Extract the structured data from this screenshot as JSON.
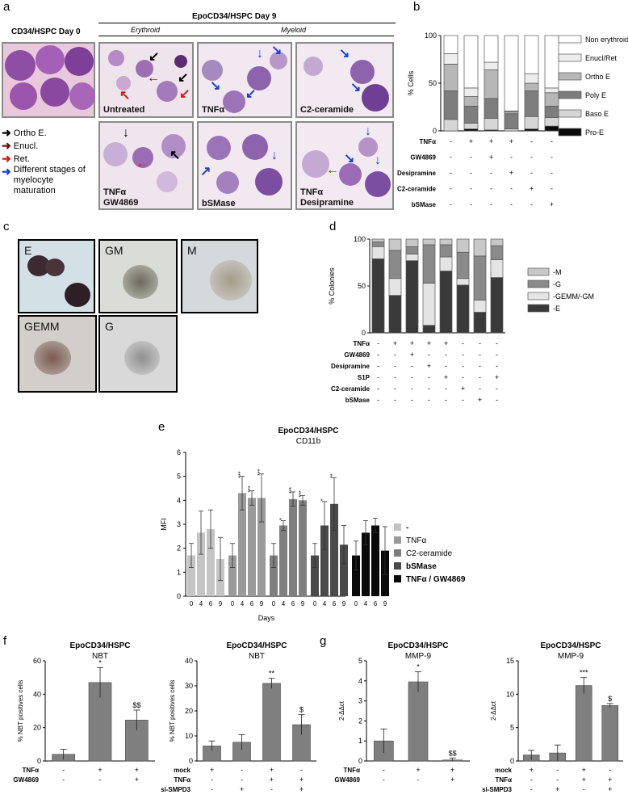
{
  "panels": {
    "a": "a",
    "b": "b",
    "c": "c",
    "d": "d",
    "e": "e",
    "f": "f",
    "g": "g"
  },
  "panel_a": {
    "day0_title": "CD34/HSPC Day 0",
    "day9_title": "EpoCD34/HSPC Day 9",
    "erythroid": "Erythroid",
    "myeloid": "Myeloid",
    "labels": {
      "untreated": "Untreated",
      "tnfa": "TNFα",
      "c2": "C2-ceramide",
      "tnfa_gw1": "TNFα",
      "tnfa_gw2": "GW4869",
      "bsmase": "bSMase",
      "tnfa_des1": "TNFα",
      "tnfa_des2": "Desipramine"
    },
    "legend": [
      "Ortho E.",
      "Enucl.",
      "Ret.",
      "Different stages of myelocyte maturation"
    ],
    "legend_colors": [
      "#000000",
      "#6b0f0f",
      "#d11a1a",
      "#1a3fd1"
    ]
  },
  "panel_c": {
    "labels": [
      "E",
      "GM",
      "M",
      "GEMM",
      "G"
    ]
  },
  "chart_data": [
    {
      "id": "b",
      "type": "bar",
      "stacked": true,
      "ylabel": "% Cells",
      "ylim": [
        0,
        100
      ],
      "yticks": [
        "0",
        "50",
        "100"
      ],
      "series": [
        {
          "name": "Pro-E",
          "values": [
            0,
            2,
            1,
            0,
            2,
            5
          ]
        },
        {
          "name": "Baso E",
          "values": [
            12,
            6,
            12,
            2,
            13,
            9
          ]
        },
        {
          "name": "Poly E",
          "values": [
            30,
            18,
            21,
            16,
            27,
            12
          ]
        },
        {
          "name": "Ortho E",
          "values": [
            28,
            10,
            30,
            2,
            8,
            14
          ]
        },
        {
          "name": "Enucl/Ret",
          "values": [
            11,
            9,
            8,
            1,
            10,
            5
          ]
        },
        {
          "name": "Non erythroid",
          "values": [
            19,
            55,
            28,
            79,
            40,
            55
          ]
        }
      ],
      "legend": [
        "Non erythroid",
        "Enucl/Ret",
        "Ortho E",
        "Poly E",
        "Baso E",
        "Pro-E"
      ],
      "colors": {
        "Non erythroid": "#ffffff",
        "Enucl/Ret": "#ededed",
        "Ortho E": "#b7b7b7",
        "Poly E": "#7d7d7d",
        "Baso E": "#d6d6d6",
        "Pro-E": "#0a0a0a"
      },
      "treatment_rows": [
        {
          "label": "TNFα",
          "signs": [
            "-",
            "+",
            "+",
            "+",
            "-",
            "-"
          ]
        },
        {
          "label": "GW4869",
          "signs": [
            "-",
            "-",
            "+",
            "-",
            "-",
            "-"
          ]
        },
        {
          "label": "Desipramine",
          "signs": [
            "-",
            "-",
            "-",
            "+",
            "-",
            "-"
          ]
        },
        {
          "label": "C2-ceramide",
          "signs": [
            "-",
            "-",
            "-",
            "-",
            "+",
            "-"
          ]
        },
        {
          "label": "bSMase",
          "signs": [
            "-",
            "-",
            "-",
            "-",
            "-",
            "+"
          ]
        }
      ]
    },
    {
      "id": "d",
      "type": "bar",
      "stacked": true,
      "ylabel": "% Colonies",
      "ylim": [
        0,
        100
      ],
      "yticks": [
        "0",
        "50",
        "100"
      ],
      "series": [
        {
          "name": "-E",
          "values": [
            79,
            40,
            77,
            8,
            66,
            51,
            22,
            59
          ]
        },
        {
          "name": "-GEMM/-GM",
          "values": [
            13,
            18,
            7,
            45,
            15,
            7,
            13,
            19
          ]
        },
        {
          "name": "-G",
          "values": [
            5,
            30,
            8,
            41,
            13,
            28,
            47,
            15
          ]
        },
        {
          "name": "-M",
          "values": [
            3,
            12,
            8,
            6,
            6,
            14,
            18,
            7
          ]
        }
      ],
      "legend": [
        "-M",
        "-G",
        "-GEMM/-GM",
        "-E"
      ],
      "colors": {
        "-M": "#c8c8c8",
        "-G": "#8a8a8a",
        "-GEMM/-GM": "#e4e4e4",
        "-E": "#3a3a3a"
      },
      "treatment_rows": [
        {
          "label": "TNFα",
          "signs": [
            "-",
            "+",
            "+",
            "+",
            "+",
            "-",
            "-",
            "-"
          ]
        },
        {
          "label": "GW4869",
          "signs": [
            "-",
            "-",
            "+",
            "-",
            "-",
            "-",
            "-",
            "-"
          ]
        },
        {
          "label": "Desipramine",
          "signs": [
            "-",
            "-",
            "-",
            "+",
            "-",
            "-",
            "-",
            "-"
          ]
        },
        {
          "label": "S1P",
          "signs": [
            "-",
            "-",
            "-",
            "-",
            "+",
            "-",
            "-",
            "+"
          ]
        },
        {
          "label": "C2-ceramide",
          "signs": [
            "-",
            "-",
            "-",
            "-",
            "-",
            "+",
            "-",
            "-"
          ]
        },
        {
          "label": "bSMase",
          "signs": [
            "-",
            "-",
            "-",
            "-",
            "-",
            "-",
            "+",
            "-"
          ]
        }
      ]
    },
    {
      "id": "e",
      "type": "bar",
      "title": "EpoCD34/HSPC",
      "subtitle": "CD11b",
      "ylabel": "MFI",
      "xlabel": "Days",
      "ylim": [
        0,
        6
      ],
      "yticks": [
        "0",
        "1",
        "2",
        "3",
        "4",
        "5",
        "6"
      ],
      "groups": [
        {
          "name": "-",
          "color": "#c4c4c4",
          "days": [
            "0",
            "4",
            "6",
            "9"
          ],
          "values": [
            1.7,
            2.65,
            2.8,
            1.55
          ],
          "err": [
            0.5,
            0.9,
            0.8,
            0.9
          ],
          "stars": [
            "",
            "",
            "",
            ""
          ]
        },
        {
          "name": "TNFα",
          "color": "#9a9a9a",
          "days": [
            "0",
            "4",
            "6",
            "9"
          ],
          "values": [
            1.7,
            4.3,
            4.1,
            4.1
          ],
          "err": [
            0.5,
            0.7,
            0.3,
            1.0
          ],
          "stars": [
            "",
            "***",
            "***",
            "***"
          ]
        },
        {
          "name": "C2-ceramide",
          "color": "#7f7f7f",
          "days": [
            "0",
            "4",
            "6",
            "9"
          ],
          "values": [
            1.7,
            2.95,
            4.05,
            4.0
          ],
          "err": [
            0.5,
            0.2,
            0.3,
            0.2
          ],
          "stars": [
            "",
            "*",
            "***",
            "***"
          ]
        },
        {
          "name": "bSMase",
          "color": "#4a4a4a",
          "days": [
            "0",
            "4",
            "6",
            "9"
          ],
          "values": [
            1.7,
            2.95,
            3.85,
            2.15
          ],
          "err": [
            0.5,
            1.0,
            1.1,
            0.8
          ],
          "stars": [
            "",
            "*",
            "**",
            ""
          ]
        },
        {
          "name": "TNFα / GW4869",
          "color": "#0a0a0a",
          "days": [
            "0",
            "4",
            "6",
            "9"
          ],
          "values": [
            1.7,
            2.65,
            2.95,
            1.9
          ],
          "err": [
            0.6,
            0.5,
            0.3,
            1.0
          ],
          "stars": [
            "",
            "",
            "",
            ""
          ]
        }
      ]
    },
    {
      "id": "f1",
      "type": "bar",
      "title": "EpoCD34/HSPC",
      "subtitle": "NBT",
      "ylabel": "% NBT positives cells",
      "ylim": [
        0,
        60
      ],
      "yticks": [
        "0",
        "20",
        "40",
        "60"
      ],
      "values": [
        4,
        47,
        24.5
      ],
      "err": [
        3,
        9,
        6
      ],
      "stars": [
        "",
        "*",
        "$$"
      ],
      "treatment_rows": [
        {
          "label": "TNFα",
          "signs": [
            "-",
            "+",
            "+"
          ]
        },
        {
          "label": "GW4869",
          "signs": [
            "-",
            "-",
            "+"
          ]
        }
      ]
    },
    {
      "id": "f2",
      "type": "bar",
      "title": "EpoCD34/HSPC",
      "subtitle": "NBT",
      "ylabel": "% NBT positives cells",
      "ylim": [
        0,
        40
      ],
      "yticks": [
        "0",
        "10",
        "20",
        "30",
        "40"
      ],
      "values": [
        6,
        7.5,
        31,
        14.5
      ],
      "err": [
        2,
        3,
        2,
        4
      ],
      "stars": [
        "",
        "",
        "**",
        "$"
      ],
      "treatment_rows": [
        {
          "label": "mock",
          "signs": [
            "+",
            "-",
            "+",
            "-"
          ]
        },
        {
          "label": "TNFα",
          "signs": [
            "-",
            "-",
            "+",
            "+"
          ]
        },
        {
          "label": "si-SMPD3",
          "signs": [
            "-",
            "+",
            "-",
            "+"
          ]
        }
      ]
    },
    {
      "id": "g1",
      "type": "bar",
      "title": "EpoCD34/HSPC",
      "subtitle": "MMP-9",
      "ylabel": "2-ΔΔct",
      "ylim": [
        0,
        5
      ],
      "yticks": [
        "0",
        "1",
        "2",
        "3",
        "4",
        "5"
      ],
      "values": [
        1.0,
        3.95,
        0.05
      ],
      "err": [
        0.6,
        0.5,
        0.1
      ],
      "stars": [
        "",
        "*",
        "$$"
      ],
      "treatment_rows": [
        {
          "label": "TNFα",
          "signs": [
            "-",
            "+",
            "+"
          ]
        },
        {
          "label": "GW4869",
          "signs": [
            "-",
            "-",
            "+"
          ]
        }
      ]
    },
    {
      "id": "g2",
      "type": "bar",
      "title": "EpoCD34/HSPC",
      "subtitle": "MMP-9",
      "ylabel": "2-ΔΔct",
      "ylim": [
        0,
        15
      ],
      "yticks": [
        "0",
        "5",
        "10",
        "15"
      ],
      "values": [
        0.9,
        1.2,
        11.3,
        8.3
      ],
      "err": [
        0.7,
        1.2,
        1.2,
        0.3
      ],
      "stars": [
        "",
        "",
        "***",
        "$"
      ],
      "treatment_rows": [
        {
          "label": "mock",
          "signs": [
            "+",
            "-",
            "+",
            "-"
          ]
        },
        {
          "label": "TNFα",
          "signs": [
            "-",
            "-",
            "+",
            "+"
          ]
        },
        {
          "label": "si-SMPD3",
          "signs": [
            "-",
            "+",
            "-",
            "+"
          ]
        }
      ]
    }
  ]
}
